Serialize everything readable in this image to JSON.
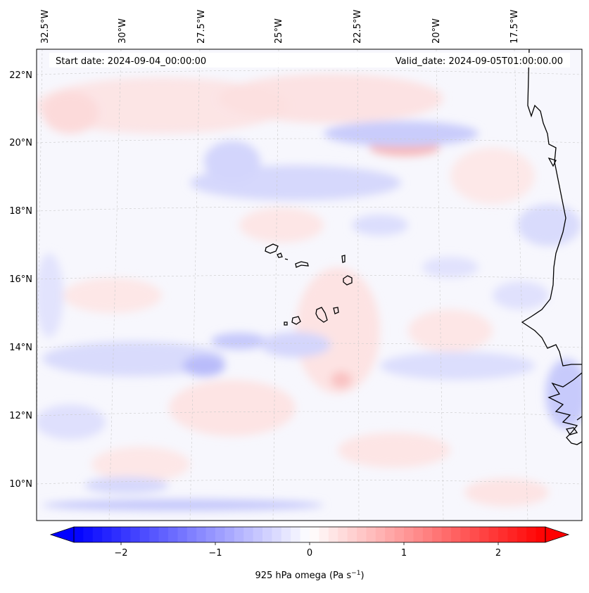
{
  "map": {
    "start_date_label": "Start date: 2024-09-04_00:00:00",
    "valid_date_label": "Valid_date: 2024-09-05T01:00:00.00",
    "lon_labels": [
      "32.5°W",
      "30°W",
      "27.5°W",
      "25°W",
      "22.5°W",
      "20°W",
      "17.5°W"
    ],
    "lat_labels": [
      "22°N",
      "20°N",
      "18°N",
      "16°N",
      "14°N",
      "12°N",
      "10°N"
    ],
    "colors": {
      "background_tint": "#f7f7fd",
      "coastline": "#000000",
      "gridline": "#bbbbbb"
    }
  },
  "colorbar": {
    "ticks": [
      "−2",
      "−1",
      "0",
      "1",
      "2"
    ],
    "tick_values": [
      -2,
      -1,
      0,
      1,
      2
    ],
    "range": [
      -2.5,
      2.5
    ],
    "label_main": "925 hPa omega (Pa s",
    "label_sup": "−1",
    "label_end": ")",
    "colors": {
      "negative": "#0000ff",
      "zero": "#ffffff",
      "positive": "#ff0000"
    }
  }
}
